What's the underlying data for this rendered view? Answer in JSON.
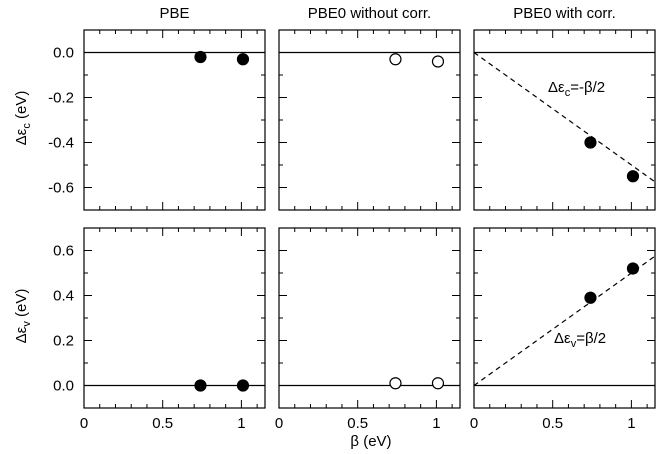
{
  "figure": {
    "x_axis_label": "β (eV)",
    "top_row_ylabel": {
      "main": "Δε",
      "sub": "c",
      "unit": " (eV)"
    },
    "bottom_row_ylabel": {
      "main": "Δε",
      "sub": "v",
      "unit": " (eV)"
    }
  },
  "chart_data": [
    {
      "type": "scatter",
      "title": "PBE",
      "row": "top",
      "xlim": [
        0,
        1.15
      ],
      "ylim": [
        -0.7,
        0.1
      ],
      "xticks": [
        0,
        0.5,
        1
      ],
      "yticks": [
        0.0,
        -0.2,
        -0.4,
        -0.6
      ],
      "ytick_labels": [
        "0.0",
        "-0.2",
        "-0.4",
        "-0.6"
      ],
      "reference_line_y": 0,
      "series": [
        {
          "marker": "filled-circle",
          "x": [
            0.74,
            1.01
          ],
          "y": [
            -0.02,
            -0.03
          ]
        }
      ]
    },
    {
      "type": "scatter",
      "title": "PBE0 without corr.",
      "row": "top",
      "xlim": [
        0,
        1.15
      ],
      "ylim": [
        -0.7,
        0.1
      ],
      "reference_line_y": 0,
      "series": [
        {
          "marker": "open-circle",
          "x": [
            0.74,
            1.01
          ],
          "y": [
            -0.03,
            -0.04
          ]
        }
      ]
    },
    {
      "type": "scatter",
      "title": "PBE0 with corr.",
      "row": "top",
      "xlim": [
        0,
        1.15
      ],
      "ylim": [
        -0.7,
        0.1
      ],
      "reference_line_y": 0,
      "dashed_line": {
        "slope": -0.5,
        "intercept": 0
      },
      "annotation": {
        "main": "Δε",
        "sub": "c",
        "rest": "=-β/2"
      },
      "series": [
        {
          "marker": "filled-circle",
          "x": [
            0.74,
            1.01
          ],
          "y": [
            -0.4,
            -0.55
          ]
        }
      ]
    },
    {
      "type": "scatter",
      "row": "bottom",
      "xlim": [
        0,
        1.15
      ],
      "ylim": [
        -0.1,
        0.7
      ],
      "xticks": [
        0,
        0.5,
        1
      ],
      "xtick_labels": [
        "0",
        "0.5",
        "1"
      ],
      "yticks": [
        0.0,
        0.2,
        0.4,
        0.6
      ],
      "ytick_labels": [
        "0.0",
        "0.2",
        "0.4",
        "0.6"
      ],
      "reference_line_y": 0,
      "series": [
        {
          "marker": "filled-circle",
          "x": [
            0.74,
            1.01
          ],
          "y": [
            0.0,
            0.0
          ]
        }
      ]
    },
    {
      "type": "scatter",
      "row": "bottom",
      "xlim": [
        0,
        1.15
      ],
      "ylim": [
        -0.1,
        0.7
      ],
      "xtick_labels": [
        "0",
        "0.5",
        "1"
      ],
      "reference_line_y": 0,
      "series": [
        {
          "marker": "open-circle",
          "x": [
            0.74,
            1.01
          ],
          "y": [
            0.01,
            0.01
          ]
        }
      ]
    },
    {
      "type": "scatter",
      "row": "bottom",
      "xlim": [
        0,
        1.15
      ],
      "ylim": [
        -0.1,
        0.7
      ],
      "xtick_labels": [
        "0",
        "0.5",
        "1"
      ],
      "reference_line_y": 0,
      "dashed_line": {
        "slope": 0.5,
        "intercept": 0
      },
      "annotation": {
        "main": "Δε",
        "sub": "v",
        "rest": "=β/2"
      },
      "series": [
        {
          "marker": "filled-circle",
          "x": [
            0.74,
            1.01
          ],
          "y": [
            0.39,
            0.52
          ]
        }
      ]
    }
  ]
}
